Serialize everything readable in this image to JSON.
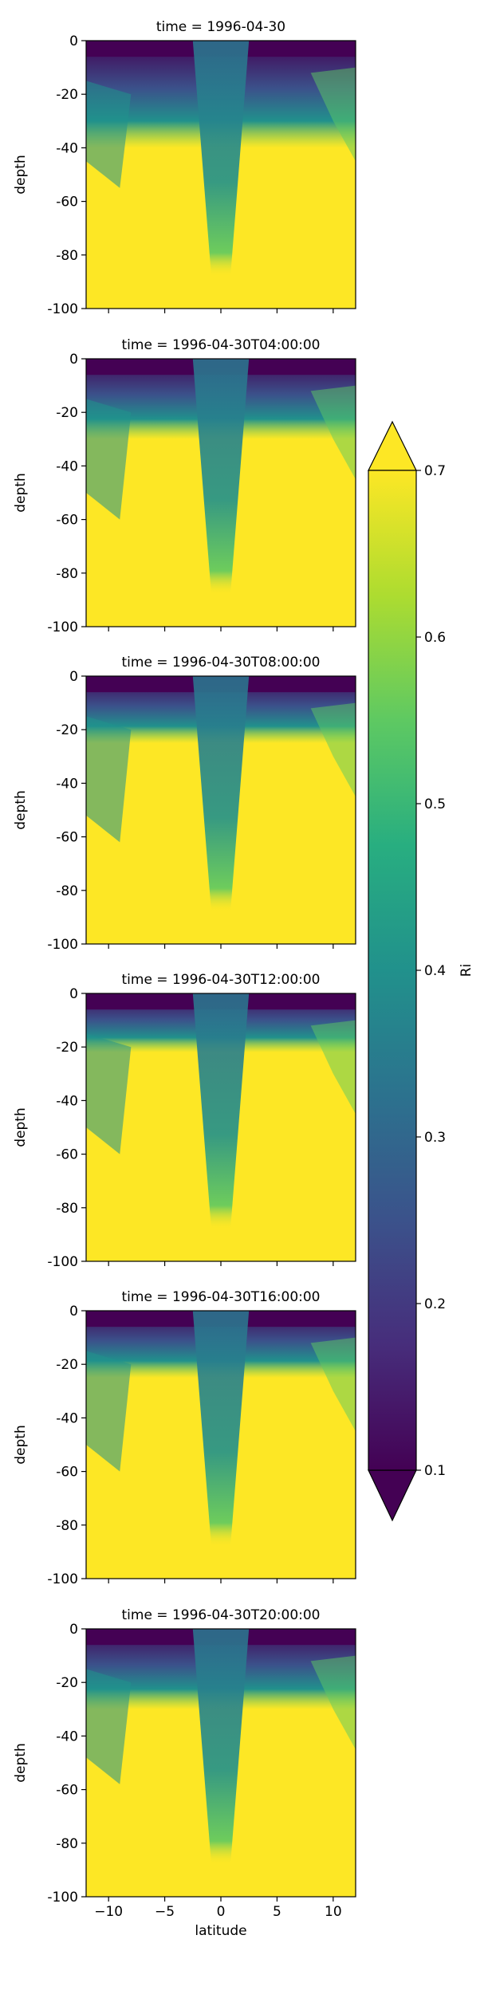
{
  "chart_data": {
    "type": "heatmap",
    "panels": [
      {
        "title": "time = 1996-04-30"
      },
      {
        "title": "time = 1996-04-30T04:00:00"
      },
      {
        "title": "time = 1996-04-30T08:00:00"
      },
      {
        "title": "time = 1996-04-30T12:00:00"
      },
      {
        "title": "time = 1996-04-30T16:00:00"
      },
      {
        "title": "time = 1996-04-30T20:00:00"
      }
    ],
    "xlabel": "latitude",
    "ylabel": "depth",
    "xlim": [
      -12,
      12
    ],
    "ylim": [
      -100,
      0
    ],
    "xticks": [
      -10,
      -5,
      0,
      5,
      10
    ],
    "yticks": [
      0,
      -20,
      -40,
      -60,
      -80,
      -100
    ],
    "colorbar": {
      "label": "Ri",
      "vmin": 0.1,
      "vmax": 0.7,
      "ticks": [
        0.7,
        0.6,
        0.5,
        0.4,
        0.3,
        0.2,
        0.1
      ],
      "extend": "both",
      "colormap": "viridis"
    },
    "shared_x": true,
    "grid": false
  },
  "colors": {
    "viridis_low": "#440154",
    "viridis_mid": "#21918c",
    "viridis_high": "#fde725"
  }
}
